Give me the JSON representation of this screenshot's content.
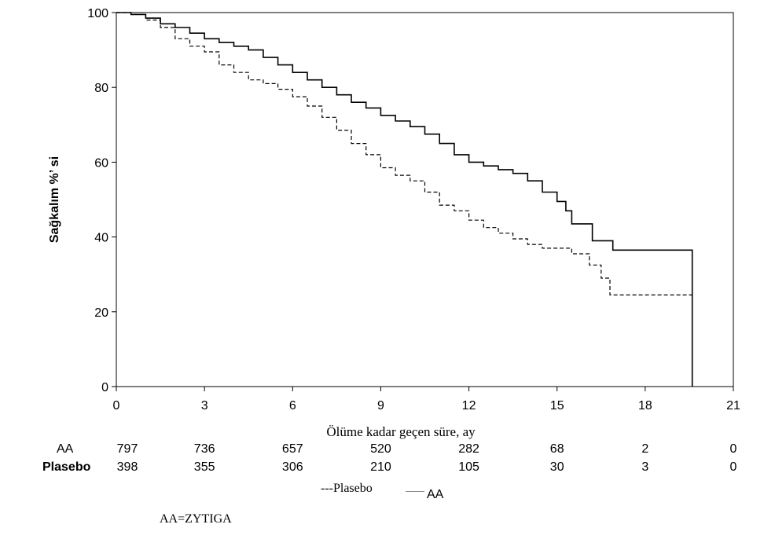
{
  "chart_data": {
    "type": "line",
    "subtype": "kaplan-meier step",
    "xlabel": "Ölüme kadar geçen süre, ay",
    "ylabel": "Sağkalım %’ si",
    "xlim": [
      0,
      21
    ],
    "ylim": [
      0,
      100
    ],
    "xticks": [
      0,
      3,
      6,
      9,
      12,
      15,
      18,
      21
    ],
    "yticks": [
      0,
      20,
      40,
      60,
      80,
      100
    ],
    "grid": false,
    "legend_position": "bottom",
    "series": [
      {
        "name": "AA",
        "line_style": "solid",
        "color": "#000000",
        "points": [
          [
            0,
            100
          ],
          [
            0.5,
            99.5
          ],
          [
            1,
            98.5
          ],
          [
            1.5,
            97
          ],
          [
            2,
            96
          ],
          [
            2.5,
            94.5
          ],
          [
            3,
            93
          ],
          [
            3.5,
            92
          ],
          [
            4,
            91
          ],
          [
            4.5,
            90
          ],
          [
            5,
            88
          ],
          [
            5.5,
            86
          ],
          [
            6,
            84
          ],
          [
            6.5,
            82
          ],
          [
            7,
            80
          ],
          [
            7.5,
            78
          ],
          [
            8,
            76
          ],
          [
            8.5,
            74.5
          ],
          [
            9,
            72.5
          ],
          [
            9.5,
            71
          ],
          [
            10,
            69.5
          ],
          [
            10.5,
            67.5
          ],
          [
            11,
            65
          ],
          [
            11.5,
            62
          ],
          [
            12,
            60
          ],
          [
            12.5,
            59
          ],
          [
            13,
            58
          ],
          [
            13.5,
            57
          ],
          [
            14,
            55
          ],
          [
            14.5,
            52
          ],
          [
            15,
            49.5
          ],
          [
            15.3,
            47
          ],
          [
            15.5,
            43.5
          ],
          [
            16.2,
            39
          ],
          [
            16.9,
            36.5
          ],
          [
            19.6,
            36.5
          ],
          [
            19.6,
            0
          ]
        ]
      },
      {
        "name": "Plasebo",
        "line_style": "dashed",
        "color": "#000000",
        "points": [
          [
            0,
            100
          ],
          [
            0.5,
            99.5
          ],
          [
            1,
            98
          ],
          [
            1.5,
            96
          ],
          [
            2,
            93
          ],
          [
            2.5,
            91
          ],
          [
            3,
            89.5
          ],
          [
            3.5,
            86
          ],
          [
            4,
            84
          ],
          [
            4.5,
            82
          ],
          [
            5,
            81
          ],
          [
            5.5,
            79.5
          ],
          [
            6,
            77.5
          ],
          [
            6.5,
            75
          ],
          [
            7,
            72
          ],
          [
            7.5,
            68.5
          ],
          [
            8,
            65
          ],
          [
            8.5,
            62
          ],
          [
            9,
            58.5
          ],
          [
            9.5,
            56.5
          ],
          [
            10,
            55
          ],
          [
            10.5,
            52
          ],
          [
            11,
            48.5
          ],
          [
            11.5,
            47
          ],
          [
            12,
            44.5
          ],
          [
            12.5,
            42.5
          ],
          [
            13,
            41
          ],
          [
            13.5,
            39.5
          ],
          [
            14,
            38
          ],
          [
            14.5,
            37
          ],
          [
            15,
            37
          ],
          [
            15.5,
            35.5
          ],
          [
            16,
            35.5
          ],
          [
            16.1,
            32.5
          ],
          [
            16.5,
            29
          ],
          [
            16.8,
            24.5
          ],
          [
            19.7,
            24.5
          ]
        ]
      }
    ],
    "risk_table": {
      "times": [
        0,
        3,
        6,
        9,
        12,
        15,
        18,
        21
      ],
      "rows": [
        {
          "label": "AA",
          "values": [
            "797",
            "736",
            "657",
            "520",
            "282",
            "68",
            "2",
            "0"
          ]
        },
        {
          "label": "Plasebo",
          "values": [
            "398",
            "355",
            "306",
            "210",
            "105",
            "30",
            "3",
            "0"
          ]
        }
      ]
    },
    "legend": [
      {
        "label": "---Plasebo"
      },
      {
        "label": "AA"
      }
    ],
    "footnote": "AA=ZYTIGA"
  }
}
